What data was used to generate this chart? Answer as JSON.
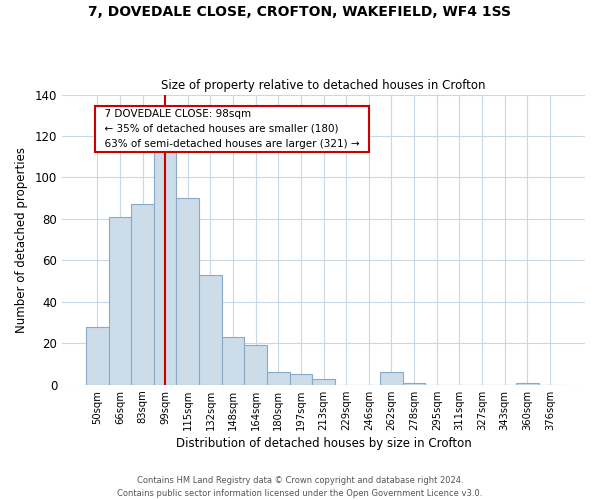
{
  "title": "7, DOVEDALE CLOSE, CROFTON, WAKEFIELD, WF4 1SS",
  "subtitle": "Size of property relative to detached houses in Crofton",
  "xlabel": "Distribution of detached houses by size in Crofton",
  "ylabel": "Number of detached properties",
  "bar_labels": [
    "50sqm",
    "66sqm",
    "83sqm",
    "99sqm",
    "115sqm",
    "132sqm",
    "148sqm",
    "164sqm",
    "180sqm",
    "197sqm",
    "213sqm",
    "229sqm",
    "246sqm",
    "262sqm",
    "278sqm",
    "295sqm",
    "311sqm",
    "327sqm",
    "343sqm",
    "360sqm",
    "376sqm"
  ],
  "bar_values": [
    28,
    81,
    87,
    113,
    90,
    53,
    23,
    19,
    6,
    5,
    3,
    0,
    0,
    6,
    1,
    0,
    0,
    0,
    0,
    1,
    0
  ],
  "bar_color": "#ccdce8",
  "bar_edge_color": "#88aac8",
  "ylim": [
    0,
    140
  ],
  "yticks": [
    0,
    20,
    40,
    60,
    80,
    100,
    120,
    140
  ],
  "vline_x": 3,
  "vline_color": "#cc0000",
  "annotation_title": "7 DOVEDALE CLOSE: 98sqm",
  "annotation_line1": "← 35% of detached houses are smaller (180)",
  "annotation_line2": "63% of semi-detached houses are larger (321) →",
  "annotation_box_color": "#ffffff",
  "annotation_box_edge": "#cc0000",
  "footer_line1": "Contains HM Land Registry data © Crown copyright and database right 2024.",
  "footer_line2": "Contains public sector information licensed under the Open Government Licence v3.0.",
  "background_color": "#ffffff",
  "grid_color": "#c8d8e4"
}
